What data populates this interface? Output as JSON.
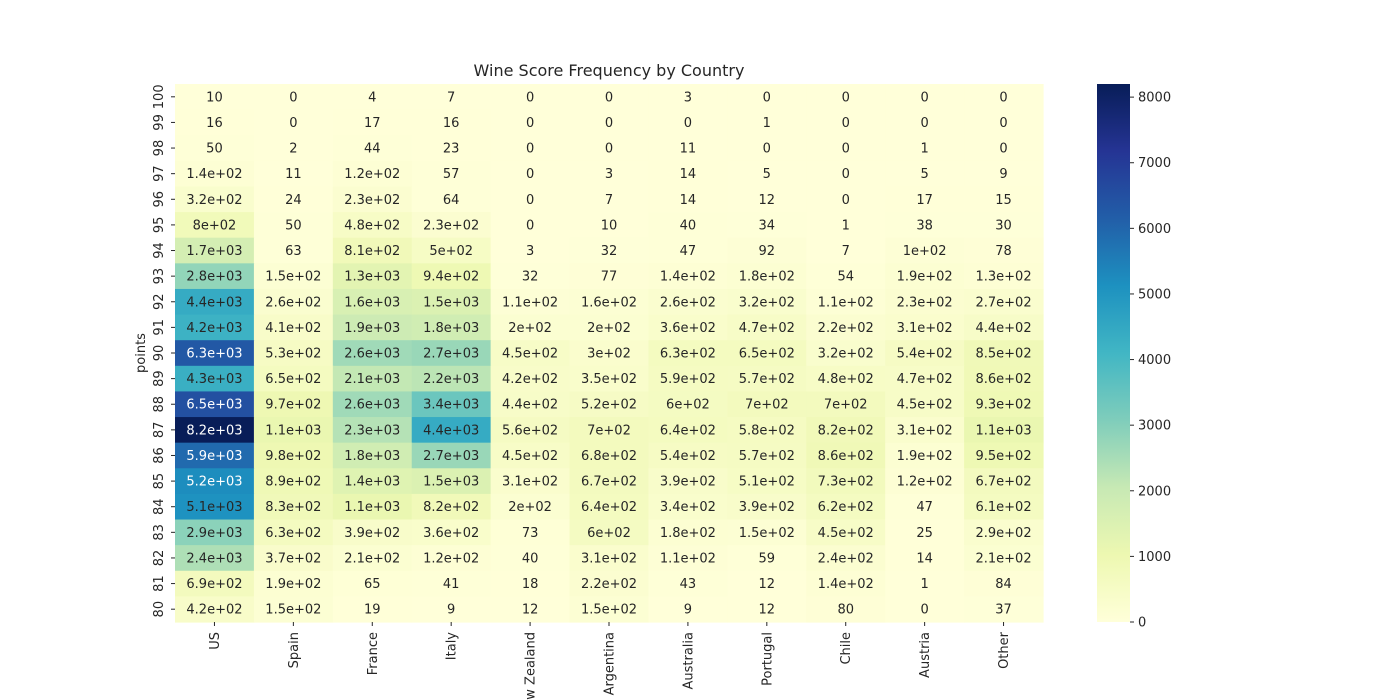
{
  "chart_data": {
    "type": "heatmap",
    "title": "Wine Score Frequency by Country",
    "xlabel": "",
    "ylabel": "points",
    "x_categories": [
      "US",
      "Spain",
      "France",
      "Italy",
      "New Zealand",
      "Argentina",
      "Australia",
      "Portugal",
      "Chile",
      "Austria",
      "Other"
    ],
    "y_categories": [
      "100",
      "99",
      "98",
      "97",
      "96",
      "95",
      "94",
      "93",
      "92",
      "91",
      "90",
      "89",
      "88",
      "87",
      "86",
      "85",
      "84",
      "83",
      "82",
      "81",
      "80"
    ],
    "values": [
      [
        10,
        0,
        4,
        7,
        0,
        0,
        3,
        0,
        0,
        0,
        0
      ],
      [
        16,
        0,
        17,
        16,
        0,
        0,
        0,
        1,
        0,
        0,
        0
      ],
      [
        50,
        2,
        44,
        23,
        0,
        0,
        11,
        0,
        0,
        1,
        0
      ],
      [
        140,
        11,
        120,
        57,
        0,
        3,
        14,
        5,
        0,
        5,
        9
      ],
      [
        320,
        24,
        230,
        64,
        0,
        7,
        14,
        12,
        0,
        17,
        15
      ],
      [
        800,
        50,
        480,
        230,
        0,
        10,
        40,
        34,
        1,
        38,
        30
      ],
      [
        1700,
        63,
        810,
        500,
        3,
        32,
        47,
        92,
        7,
        100,
        78
      ],
      [
        2800,
        150,
        1300,
        940,
        32,
        77,
        140,
        180,
        54,
        190,
        130
      ],
      [
        4400,
        260,
        1600,
        1500,
        110,
        160,
        260,
        320,
        110,
        230,
        270
      ],
      [
        4200,
        410,
        1900,
        1800,
        200,
        200,
        360,
        470,
        220,
        310,
        440
      ],
      [
        6300,
        530,
        2600,
        2700,
        450,
        300,
        630,
        650,
        320,
        540,
        850
      ],
      [
        4300,
        650,
        2100,
        2200,
        420,
        350,
        590,
        570,
        480,
        470,
        860
      ],
      [
        6500,
        970,
        2600,
        3400,
        440,
        520,
        600,
        700,
        700,
        450,
        930
      ],
      [
        8200,
        1100,
        2300,
        4400,
        560,
        700,
        640,
        580,
        820,
        310,
        1100
      ],
      [
        5900,
        980,
        1800,
        2700,
        450,
        680,
        540,
        570,
        860,
        190,
        950
      ],
      [
        5200,
        890,
        1400,
        1500,
        310,
        670,
        390,
        510,
        730,
        120,
        670
      ],
      [
        5100,
        830,
        1100,
        820,
        200,
        640,
        340,
        390,
        620,
        47,
        610
      ],
      [
        2900,
        630,
        390,
        360,
        73,
        600,
        180,
        150,
        450,
        25,
        290
      ],
      [
        2400,
        370,
        210,
        120,
        40,
        310,
        110,
        59,
        240,
        14,
        210
      ],
      [
        690,
        190,
        65,
        41,
        18,
        220,
        43,
        12,
        140,
        1,
        84
      ],
      [
        420,
        150,
        19,
        9,
        12,
        150,
        9,
        12,
        80,
        0,
        37
      ]
    ],
    "annotations": [
      [
        "10",
        "0",
        "4",
        "7",
        "0",
        "0",
        "3",
        "0",
        "0",
        "0",
        "0"
      ],
      [
        "16",
        "0",
        "17",
        "16",
        "0",
        "0",
        "0",
        "1",
        "0",
        "0",
        "0"
      ],
      [
        "50",
        "2",
        "44",
        "23",
        "0",
        "0",
        "11",
        "0",
        "0",
        "1",
        "0"
      ],
      [
        "1.4e+02",
        "11",
        "1.2e+02",
        "57",
        "0",
        "3",
        "14",
        "5",
        "0",
        "5",
        "9"
      ],
      [
        "3.2e+02",
        "24",
        "2.3e+02",
        "64",
        "0",
        "7",
        "14",
        "12",
        "0",
        "17",
        "15"
      ],
      [
        "8e+02",
        "50",
        "4.8e+02",
        "2.3e+02",
        "0",
        "10",
        "40",
        "34",
        "1",
        "38",
        "30"
      ],
      [
        "1.7e+03",
        "63",
        "8.1e+02",
        "5e+02",
        "3",
        "32",
        "47",
        "92",
        "7",
        "1e+02",
        "78"
      ],
      [
        "2.8e+03",
        "1.5e+02",
        "1.3e+03",
        "9.4e+02",
        "32",
        "77",
        "1.4e+02",
        "1.8e+02",
        "54",
        "1.9e+02",
        "1.3e+02"
      ],
      [
        "4.4e+03",
        "2.6e+02",
        "1.6e+03",
        "1.5e+03",
        "1.1e+02",
        "1.6e+02",
        "2.6e+02",
        "3.2e+02",
        "1.1e+02",
        "2.3e+02",
        "2.7e+02"
      ],
      [
        "4.2e+03",
        "4.1e+02",
        "1.9e+03",
        "1.8e+03",
        "2e+02",
        "2e+02",
        "3.6e+02",
        "4.7e+02",
        "2.2e+02",
        "3.1e+02",
        "4.4e+02"
      ],
      [
        "6.3e+03",
        "5.3e+02",
        "2.6e+03",
        "2.7e+03",
        "4.5e+02",
        "3e+02",
        "6.3e+02",
        "6.5e+02",
        "3.2e+02",
        "5.4e+02",
        "8.5e+02"
      ],
      [
        "4.3e+03",
        "6.5e+02",
        "2.1e+03",
        "2.2e+03",
        "4.2e+02",
        "3.5e+02",
        "5.9e+02",
        "5.7e+02",
        "4.8e+02",
        "4.7e+02",
        "8.6e+02"
      ],
      [
        "6.5e+03",
        "9.7e+02",
        "2.6e+03",
        "3.4e+03",
        "4.4e+02",
        "5.2e+02",
        "6e+02",
        "7e+02",
        "7e+02",
        "4.5e+02",
        "9.3e+02"
      ],
      [
        "8.2e+03",
        "1.1e+03",
        "2.3e+03",
        "4.4e+03",
        "5.6e+02",
        "7e+02",
        "6.4e+02",
        "5.8e+02",
        "8.2e+02",
        "3.1e+02",
        "1.1e+03"
      ],
      [
        "5.9e+03",
        "9.8e+02",
        "1.8e+03",
        "2.7e+03",
        "4.5e+02",
        "6.8e+02",
        "5.4e+02",
        "5.7e+02",
        "8.6e+02",
        "1.9e+02",
        "9.5e+02"
      ],
      [
        "5.2e+03",
        "8.9e+02",
        "1.4e+03",
        "1.5e+03",
        "3.1e+02",
        "6.7e+02",
        "3.9e+02",
        "5.1e+02",
        "7.3e+02",
        "1.2e+02",
        "6.7e+02"
      ],
      [
        "5.1e+03",
        "8.3e+02",
        "1.1e+03",
        "8.2e+02",
        "2e+02",
        "6.4e+02",
        "3.4e+02",
        "3.9e+02",
        "6.2e+02",
        "47",
        "6.1e+02"
      ],
      [
        "2.9e+03",
        "6.3e+02",
        "3.9e+02",
        "3.6e+02",
        "73",
        "6e+02",
        "1.8e+02",
        "1.5e+02",
        "4.5e+02",
        "25",
        "2.9e+02"
      ],
      [
        "2.4e+03",
        "3.7e+02",
        "2.1e+02",
        "1.2e+02",
        "40",
        "3.1e+02",
        "1.1e+02",
        "59",
        "2.4e+02",
        "14",
        "2.1e+02"
      ],
      [
        "6.9e+02",
        "1.9e+02",
        "65",
        "41",
        "18",
        "2.2e+02",
        "43",
        "12",
        "1.4e+02",
        "1",
        "84"
      ],
      [
        "4.2e+02",
        "1.5e+02",
        "19",
        "9",
        "12",
        "1.5e+02",
        "9",
        "12",
        "80",
        "0",
        "37"
      ]
    ],
    "colormap": "YlGnBu",
    "colormap_stops": [
      "#ffffd9",
      "#edf8b1",
      "#c7e9b4",
      "#7fcdbb",
      "#41b6c4",
      "#1d91c0",
      "#225ea8",
      "#253494",
      "#081d58"
    ],
    "vmin": 0,
    "vmax": 8200,
    "colorbar_ticks": [
      0,
      1000,
      2000,
      3000,
      4000,
      5000,
      6000,
      7000,
      8000
    ],
    "grid": false,
    "colorbar_position": "right"
  }
}
